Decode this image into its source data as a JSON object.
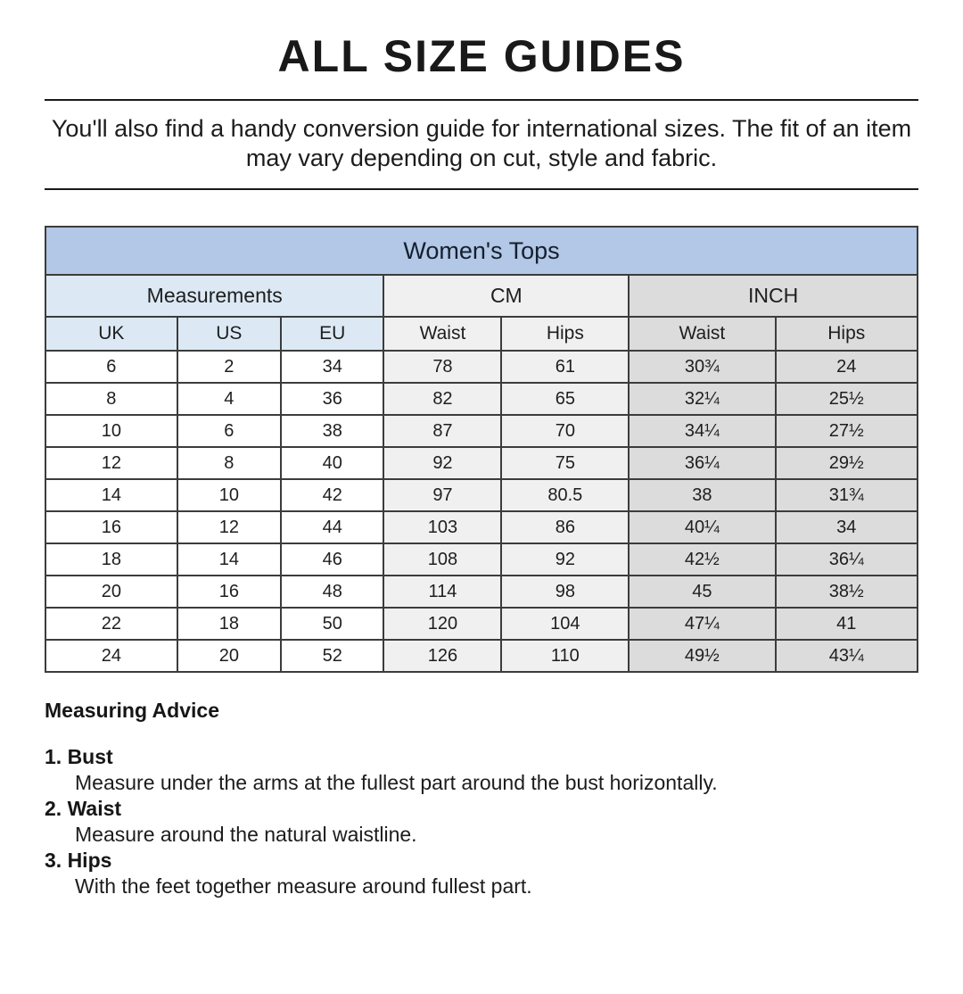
{
  "page": {
    "title": "ALL SIZE GUIDES",
    "intro": "You'll also find a handy conversion guide for international sizes. The fit of an item may vary depending on cut, style and fabric."
  },
  "table": {
    "title": "Women's Tops",
    "groups": [
      {
        "label": "Measurements",
        "span": 3
      },
      {
        "label": "CM",
        "span": 2
      },
      {
        "label": "INCH",
        "span": 2
      }
    ],
    "columns": [
      "UK",
      "US",
      "EU",
      "Waist",
      "Hips",
      "Waist",
      "Hips"
    ],
    "rows": [
      [
        "6",
        "2",
        "34",
        "78",
        "61",
        "30¾",
        "24"
      ],
      [
        "8",
        "4",
        "36",
        "82",
        "65",
        "32¼",
        "25½"
      ],
      [
        "10",
        "6",
        "38",
        "87",
        "70",
        "34¼",
        "27½"
      ],
      [
        "12",
        "8",
        "40",
        "92",
        "75",
        "36¼",
        "29½"
      ],
      [
        "14",
        "10",
        "42",
        "97",
        "80.5",
        "38",
        "31¾"
      ],
      [
        "16",
        "12",
        "44",
        "103",
        "86",
        "40¼",
        "34"
      ],
      [
        "18",
        "14",
        "46",
        "108",
        "92",
        "42½",
        "36¼"
      ],
      [
        "20",
        "16",
        "48",
        "114",
        "98",
        "45",
        "38½"
      ],
      [
        "22",
        "18",
        "50",
        "120",
        "104",
        "47¼",
        "41"
      ],
      [
        "24",
        "20",
        "52",
        "126",
        "110",
        "49½",
        "43¼"
      ]
    ]
  },
  "advice": {
    "heading": "Measuring Advice",
    "items": [
      {
        "label": "1. Bust",
        "text": "Measure under the arms at the fullest part around the bust horizontally."
      },
      {
        "label": "2. Waist",
        "text": "Measure around the natural waistline."
      },
      {
        "label": "3. Hips",
        "text": "With the feet together measure around fullest part."
      }
    ]
  },
  "colors": {
    "table_title_bg": "#b3c7e6",
    "measurements_bg": "#dce9f5",
    "cm_bg": "#f0f0f0",
    "inch_bg": "#dcdcdc",
    "border": "#3c3c3c",
    "text": "#1e1e1e"
  }
}
